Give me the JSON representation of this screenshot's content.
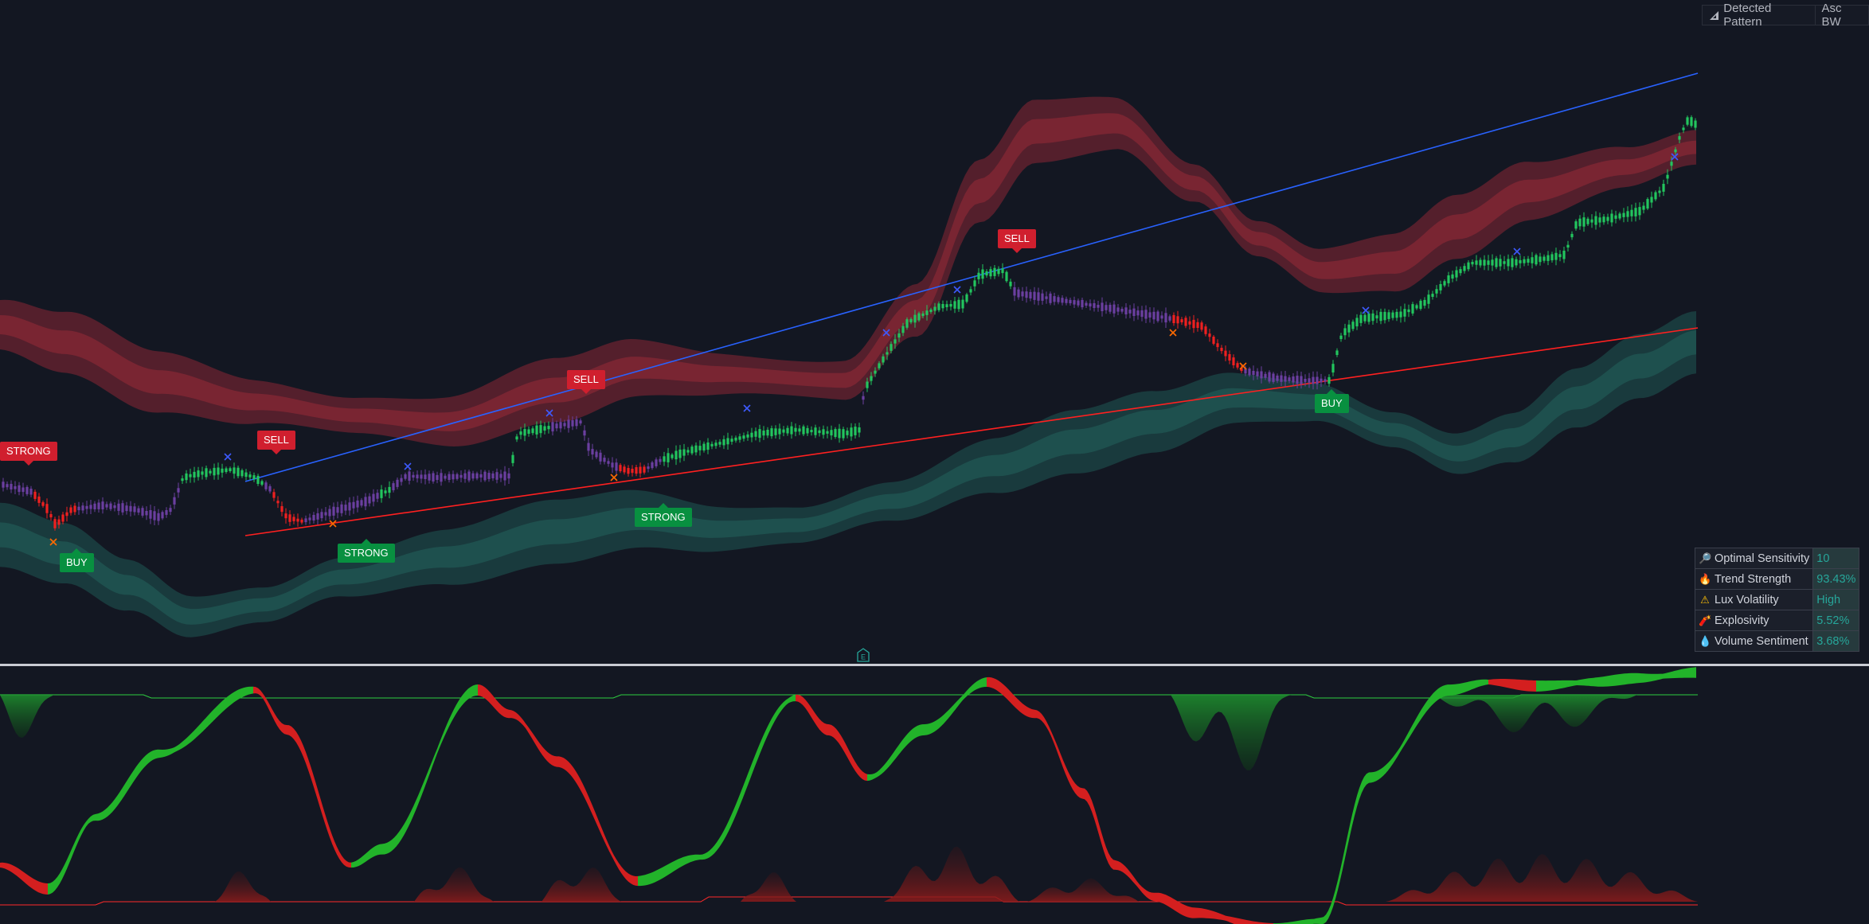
{
  "toolbar": {
    "pattern_label": "Detected Pattern",
    "pattern_value": "Asc BW",
    "pattern_icon": "ruler-triangle-icon"
  },
  "stats": [
    {
      "icon": "magnifier-icon",
      "glyph": "🔎",
      "label": "Optimal Sensitivity",
      "value": "10"
    },
    {
      "icon": "fire-icon",
      "glyph": "🔥",
      "label": "Trend Strength",
      "value": "93.43%"
    },
    {
      "icon": "warning-icon",
      "glyph": "⚠",
      "label": "Lux Volatility",
      "value": "High"
    },
    {
      "icon": "dynamite-icon",
      "glyph": "🧨",
      "label": "Explosivity",
      "value": "5.52%"
    },
    {
      "icon": "droplet-icon",
      "glyph": "💧",
      "label": "Volume Sentiment",
      "value": "3.68%"
    }
  ],
  "signals": [
    {
      "text": "STRONG",
      "kind": "red"
    },
    {
      "text": "BUY",
      "kind": "green"
    },
    {
      "text": "SELL",
      "kind": "red"
    },
    {
      "text": "STRONG",
      "kind": "green"
    },
    {
      "text": "SELL",
      "kind": "red"
    },
    {
      "text": "STRONG",
      "kind": "green"
    },
    {
      "text": "SELL",
      "kind": "red"
    },
    {
      "text": "BUY",
      "kind": "green"
    }
  ],
  "earnings_marker": "E",
  "colors": {
    "background": "#131722",
    "bull": "#22c55e",
    "bear": "#ef2020",
    "neutral": "#6b3fa0",
    "upper_band": "#6b2330",
    "lower_band": "#1c4a48",
    "trendline_upper": "#2962ff",
    "trendline_lower": "#ff2020",
    "label_sell": "#d01f2e",
    "label_buy": "#089040"
  }
}
